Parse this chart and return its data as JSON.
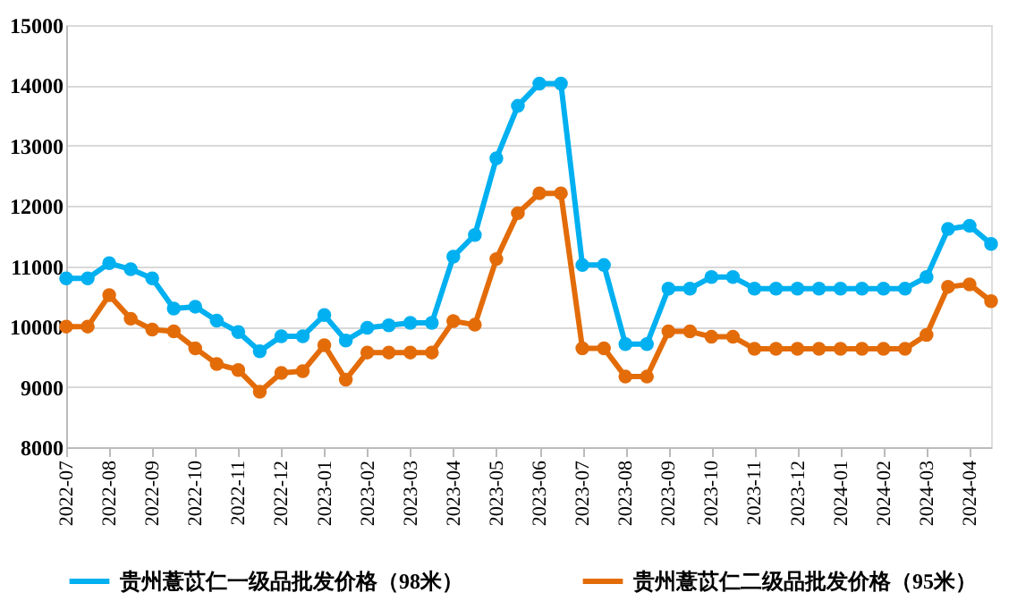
{
  "chart_data": {
    "type": "line",
    "categories": [
      "2022-07",
      null,
      "2022-08",
      null,
      "2022-09",
      null,
      "2022-10",
      null,
      "2022-11",
      null,
      "2022-12",
      null,
      "2023-01",
      null,
      "2023-02",
      null,
      "2023-03",
      null,
      "2023-04",
      null,
      "2023-05",
      null,
      "2023-06",
      null,
      "2023-07",
      null,
      "2023-08",
      null,
      "2023-09",
      null,
      "2023-10",
      null,
      "2023-11",
      null,
      "2023-12",
      null,
      "2024-01",
      null,
      "2024-02",
      null,
      "2024-03",
      null,
      "2024-04",
      null
    ],
    "series": [
      {
        "name": "贵州薏苡仁一级品批发价格（98米）",
        "color": "#00b0f0",
        "values": [
          10800,
          10800,
          11050,
          10950,
          10800,
          10300,
          10330,
          10100,
          9910,
          9590,
          9840,
          9840,
          10190,
          9770,
          9980,
          10020,
          10060,
          10060,
          11160,
          11520,
          12790,
          13660,
          14030,
          14030,
          11020,
          11020,
          9710,
          9710,
          10630,
          10630,
          10820,
          10820,
          10630,
          10630,
          10630,
          10630,
          10630,
          10630,
          10630,
          10630,
          10820,
          11620,
          11670,
          11370
        ]
      },
      {
        "name": "贵州薏苡仁二级品批发价格（95米）",
        "color": "#e36c09",
        "values": [
          10000,
          10000,
          10520,
          10130,
          9950,
          9920,
          9640,
          9380,
          9280,
          8920,
          9230,
          9260,
          9690,
          9120,
          9570,
          9570,
          9570,
          9570,
          10090,
          10030,
          11120,
          11880,
          12210,
          12210,
          9640,
          9640,
          9170,
          9170,
          9920,
          9920,
          9830,
          9830,
          9630,
          9630,
          9630,
          9630,
          9630,
          9630,
          9630,
          9630,
          9860,
          10660,
          10700,
          10420
        ]
      }
    ],
    "ylim": [
      8000,
      15000
    ],
    "yticks": [
      8000,
      9000,
      10000,
      11000,
      12000,
      13000,
      14000,
      15000
    ],
    "grid": "y",
    "legend": "bottom",
    "marker": "circle",
    "line_style": "solid"
  }
}
